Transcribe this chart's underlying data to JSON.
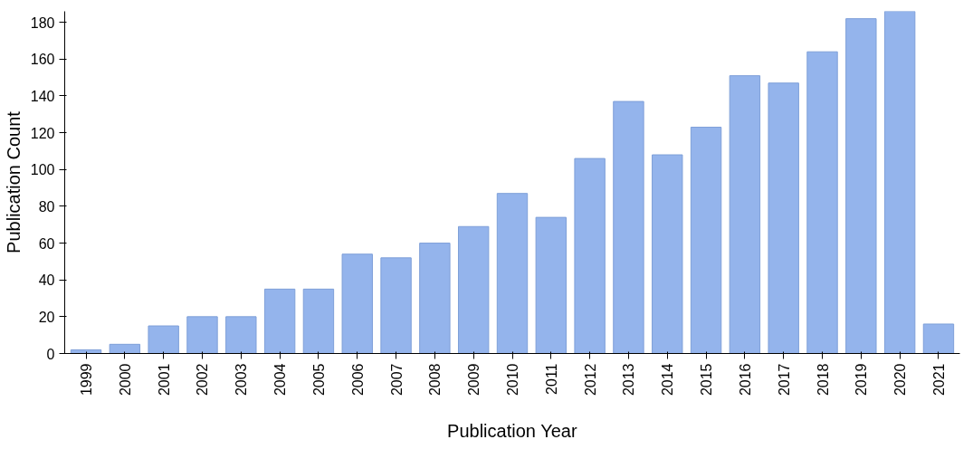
{
  "chart_data": {
    "type": "bar",
    "xlabel": "Publication Year",
    "ylabel": "Publication Count",
    "categories": [
      "1999",
      "2000",
      "2001",
      "2002",
      "2003",
      "2004",
      "2005",
      "2006",
      "2007",
      "2008",
      "2009",
      "2010",
      "2011",
      "2012",
      "2013",
      "2014",
      "2015",
      "2016",
      "2017",
      "2018",
      "2019",
      "2020",
      "2021"
    ],
    "values": [
      2,
      5,
      15,
      20,
      20,
      35,
      35,
      54,
      52,
      60,
      69,
      87,
      74,
      106,
      137,
      108,
      123,
      151,
      147,
      164,
      182,
      186,
      16
    ],
    "color": "#94b4ec",
    "ylim": [
      0,
      186
    ],
    "yticks": [
      0,
      20,
      40,
      60,
      80,
      100,
      120,
      140,
      160,
      180
    ],
    "grid": false
  }
}
